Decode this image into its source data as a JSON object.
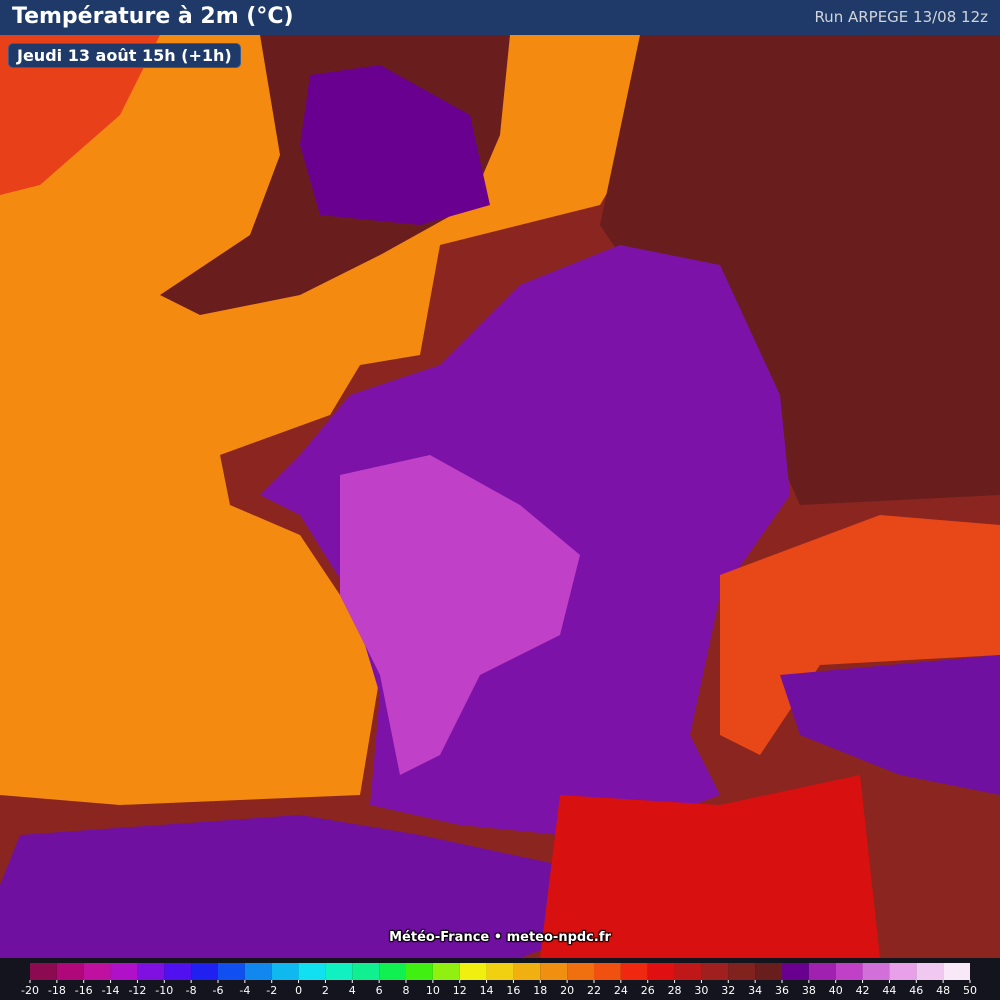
{
  "header": {
    "title": "Température à 2m (°C)",
    "run": "Run ARPEGE 13/08 12z"
  },
  "date_label": "Jeudi 13 août 15h (+1h)",
  "credit": "Météo-France • meteo-npdc.fr",
  "legend": {
    "ticks": [
      -20,
      -18,
      -16,
      -14,
      -12,
      -10,
      -8,
      -6,
      -4,
      -2,
      0,
      2,
      4,
      6,
      8,
      10,
      12,
      14,
      16,
      18,
      20,
      22,
      24,
      26,
      28,
      30,
      32,
      34,
      36,
      38,
      40,
      42,
      44,
      46,
      48,
      50
    ],
    "colors": [
      "#8b0a50",
      "#b0087a",
      "#c010a0",
      "#b010c8",
      "#8010e0",
      "#5010f0",
      "#2020f0",
      "#1050f0",
      "#1088f0",
      "#10b8f0",
      "#10e0f0",
      "#10f0c0",
      "#10f090",
      "#10f050",
      "#40f010",
      "#90f010",
      "#f0f010",
      "#f0d010",
      "#f0b010",
      "#f09010",
      "#f07010",
      "#f05010",
      "#f02810",
      "#e01010",
      "#c01818",
      "#a02020",
      "#82221e",
      "#6a1d1d",
      "#6a0090",
      "#a020b0",
      "#c040c8",
      "#d070d8",
      "#e8a0e8",
      "#f0c8f0",
      "#f8e8f8",
      "#c0c0c0"
    ]
  }
}
